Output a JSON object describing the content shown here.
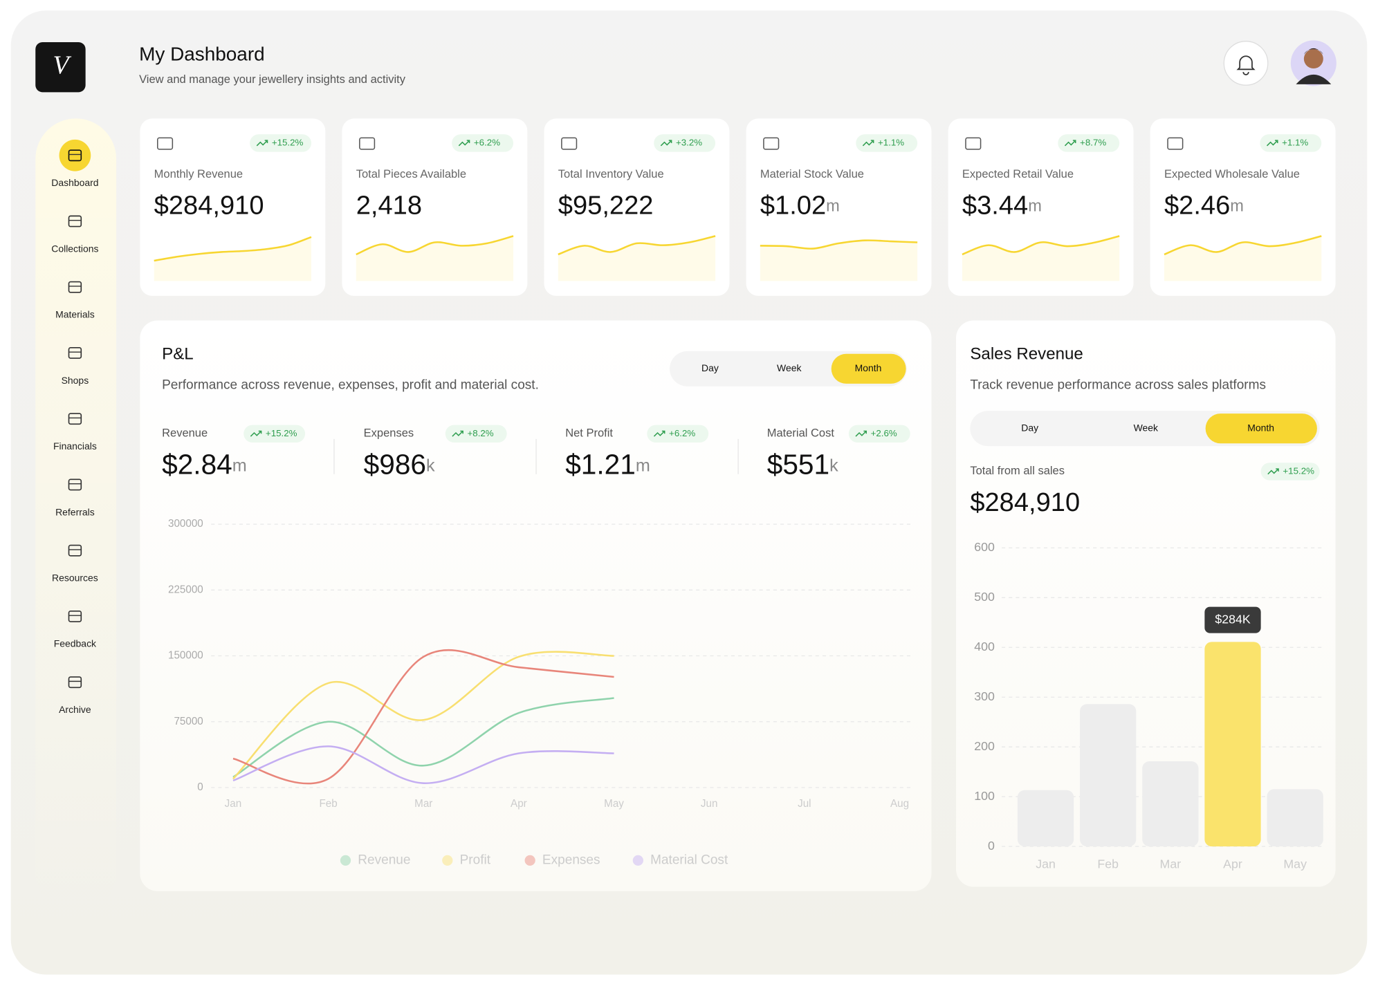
{
  "logo": "V",
  "header": {
    "title": "My Dashboard",
    "subtitle": "View and manage your jewellery insights and activity"
  },
  "sidebar": {
    "items": [
      "Dashboard",
      "Collections",
      "Materials",
      "Shops",
      "Financials",
      "Referrals",
      "Resources",
      "Feedback",
      "Archive"
    ]
  },
  "stats": [
    {
      "label": "Monthly Revenue",
      "value": "$284,910",
      "change": "+15.2%",
      "sparkline": {
        "type": "line",
        "values": [
          42,
          50,
          56,
          60,
          62,
          66,
          74,
          91
        ],
        "ylim": [
          0,
          100
        ],
        "color": "#f7d631"
      }
    },
    {
      "label": "Total Pieces Available",
      "value": "2,418",
      "change": "+6.2%",
      "sparkline": {
        "type": "line",
        "values": [
          55,
          76,
          60,
          80,
          73,
          78,
          93
        ],
        "ylim": [
          0,
          100
        ],
        "color": "#f7d631"
      }
    },
    {
      "label": "Total Inventory Value",
      "value": "$95,222",
      "change": "+3.2%",
      "sparkline": {
        "type": "line",
        "values": [
          55,
          73,
          60,
          78,
          74,
          80,
          93
        ],
        "ylim": [
          0,
          100
        ],
        "color": "#f7d631"
      }
    },
    {
      "label": "Material Stock Value",
      "value": "$1.02",
      "unit": "m",
      "change": "+1.1%",
      "sparkline": {
        "type": "line",
        "values": [
          73,
          72,
          67,
          78,
          84,
          82,
          80
        ],
        "ylim": [
          0,
          100
        ],
        "color": "#f7d631"
      }
    },
    {
      "label": "Expected Retail Value",
      "value": "$3.44",
      "unit": "m",
      "change": "+8.7%",
      "sparkline": {
        "type": "line",
        "values": [
          55,
          74,
          60,
          80,
          72,
          79,
          93
        ],
        "ylim": [
          0,
          100
        ],
        "color": "#f7d631"
      }
    },
    {
      "label": "Expected Wholesale Value",
      "value": "$2.46",
      "unit": "m",
      "change": "+1.1%",
      "sparkline": {
        "type": "line",
        "values": [
          55,
          74,
          60,
          80,
          72,
          79,
          93
        ],
        "ylim": [
          0,
          100
        ],
        "color": "#f7d631"
      }
    }
  ],
  "pnl": {
    "title": "P&L",
    "subtitle": "Performance across revenue, expenses, profit and material cost.",
    "tabs": [
      "Day",
      "Week",
      "Month"
    ],
    "metrics": [
      {
        "label": "Revenue",
        "value": "$2.84",
        "unit": "m",
        "change": "+15.2%"
      },
      {
        "label": "Expenses",
        "value": "$986",
        "unit": "k",
        "change": "+8.2%"
      },
      {
        "label": "Net Profit",
        "value": "$1.21",
        "unit": "m",
        "change": "+6.2%"
      },
      {
        "label": "Material Cost",
        "value": "$551",
        "unit": "k",
        "change": "+2.6%"
      }
    ],
    "chart": {
      "type": "line",
      "categories": [
        "Jan",
        "Feb",
        "Mar",
        "Apr",
        "May",
        "Jun",
        "Jul",
        "Aug"
      ],
      "series": [
        {
          "name": "Revenue",
          "color": "#8fd3ac",
          "values": [
            12000,
            75000,
            25000,
            85000,
            102000,
            null,
            null,
            null
          ]
        },
        {
          "name": "Profit",
          "color": "#f8df70",
          "values": [
            10000,
            119000,
            77000,
            149000,
            150000,
            null,
            null,
            null
          ]
        },
        {
          "name": "Expenses",
          "color": "#e8857a",
          "values": [
            33000,
            10000,
            149000,
            137000,
            126000,
            null,
            null,
            null
          ]
        },
        {
          "name": "Material Cost",
          "color": "#c4aef2",
          "values": [
            8000,
            47000,
            5000,
            39000,
            39000,
            null,
            null,
            null
          ]
        }
      ],
      "ylim": [
        0,
        300000
      ],
      "yticks": [
        0,
        75000,
        150000,
        225000,
        300000
      ],
      "grid": true
    }
  },
  "sales": {
    "title": "Sales Revenue",
    "subtitle": "Track revenue performance across sales platforms",
    "tabs": [
      "Day",
      "Week",
      "Month"
    ],
    "total_label": "Total from all sales",
    "total_change": "+15.2%",
    "total_value": "$284,910",
    "chart": {
      "type": "bar",
      "categories": [
        "Jan",
        "Feb",
        "Mar",
        "Apr",
        "May"
      ],
      "values": [
        113,
        286,
        171,
        411,
        115
      ],
      "colors": [
        "#ededed",
        "#ededed",
        "#ededed",
        "#fae36c",
        "#ededed"
      ],
      "ylim": [
        0,
        600
      ],
      "yticks": [
        0,
        100,
        200,
        300,
        400,
        500,
        600
      ],
      "grid": true,
      "annotation": {
        "text": "$284K",
        "x": "Apr"
      }
    }
  }
}
